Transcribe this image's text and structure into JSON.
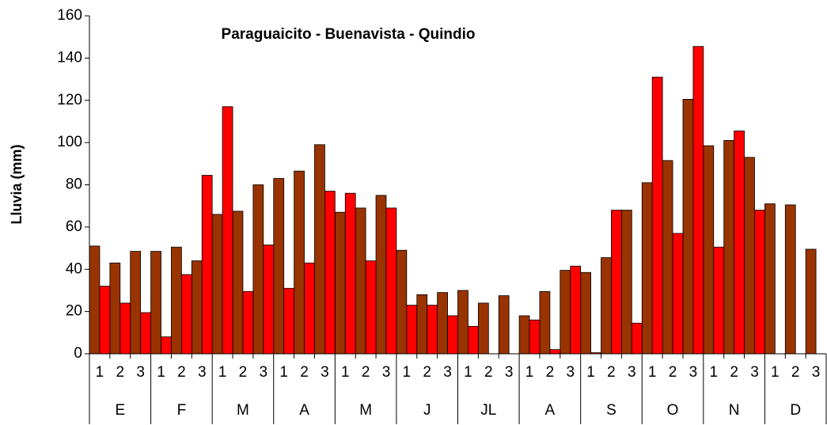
{
  "chart_data": {
    "type": "bar",
    "title": "Paraguaicito - Buenavista - Quindio",
    "y_label": "Lluvia (mm)",
    "categories": [
      "1",
      "2",
      "3",
      "1",
      "2",
      "3",
      "1",
      "2",
      "3",
      "1",
      "2",
      "3",
      "1",
      "2",
      "3",
      "1",
      "2",
      "3",
      "1",
      "2",
      "3",
      "1",
      "2",
      "3",
      "1",
      "2",
      "3",
      "1",
      "2",
      "3",
      "1",
      "2",
      "3",
      "1",
      "2",
      "3"
    ],
    "groups": [
      "E",
      "F",
      "M",
      "A",
      "M",
      "J",
      "JL",
      "A",
      "S",
      "O",
      "N",
      "D"
    ],
    "series": [
      {
        "color": "#993300",
        "values": [
          51,
          43,
          48.5,
          48.5,
          50.5,
          44,
          66,
          67.5,
          80,
          83,
          86.5,
          99,
          67,
          69,
          75,
          49,
          28,
          29,
          30,
          24,
          27.5,
          18,
          29.5,
          39.5,
          38.5,
          45.5,
          68,
          81,
          91.5,
          120.5,
          98.5,
          101,
          93,
          71,
          70.5,
          49.5
        ]
      },
      {
        "color": "#ff0000",
        "values": [
          32,
          24,
          19.5,
          8,
          37.5,
          84.5,
          117,
          29.5,
          51.5,
          31,
          43,
          77,
          76,
          44,
          69,
          23,
          23,
          18,
          13,
          null,
          null,
          16,
          2,
          41.5,
          0.5,
          68,
          14.5,
          131,
          57,
          145.5,
          50.5,
          105.5,
          68,
          null,
          null,
          null
        ]
      }
    ],
    "ylim": [
      0,
      160
    ],
    "yticks": [
      0,
      20,
      40,
      60,
      80,
      100,
      120,
      140,
      160
    ],
    "grid": false
  }
}
